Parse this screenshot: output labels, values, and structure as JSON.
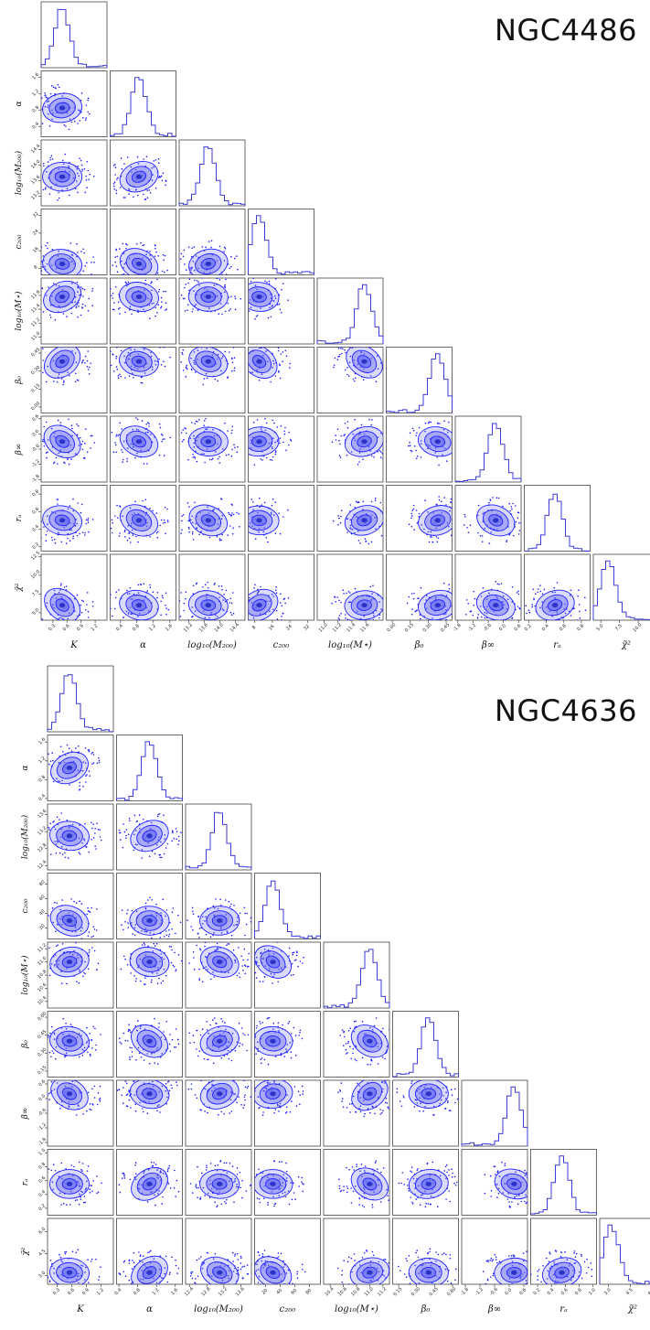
{
  "chart_data": [
    {
      "type": "corner",
      "title": "NGC4486",
      "colors": {
        "contour": "#1f1fff",
        "fill": "#6a6ff2",
        "hist": "#3b3bd9",
        "dot": "#1a1aff"
      },
      "params": [
        {
          "name": "K",
          "label": "K",
          "range": [
            0.05,
            1.45
          ],
          "ticks": [
            "0.3",
            "0.6",
            "0.9",
            "1.2"
          ],
          "center": 0.5
        },
        {
          "name": "alpha",
          "label": "α",
          "range": [
            0.15,
            1.75
          ],
          "ticks": [
            "0.4",
            "0.8",
            "1.2",
            "1.6"
          ],
          "center": 0.85
        },
        {
          "name": "log10M200",
          "label": "log₁₀(M₂₀₀)",
          "range": [
            12.95,
            14.65
          ],
          "ticks": [
            "13.2",
            "13.6",
            "14.0",
            "14.4"
          ],
          "center": 13.7
        },
        {
          "name": "c200",
          "label": "c₂₀₀",
          "range": [
            5,
            35
          ],
          "ticks": [
            "8",
            "16",
            "24",
            "32"
          ],
          "center": 10
        },
        {
          "name": "log10Mstar",
          "label": "log₁₀(M⋆)",
          "range": [
            10.9,
            11.85
          ],
          "ticks": [
            "11.0",
            "11.2",
            "11.4",
            "11.6"
          ],
          "center": 11.58
        },
        {
          "name": "beta0",
          "label": "β₀",
          "range": [
            -0.05,
            0.5
          ],
          "ticks": [
            "0.00",
            "0.15",
            "0.30",
            "0.45"
          ],
          "center": 0.38
        },
        {
          "name": "betainf",
          "label": "β∞",
          "range": [
            -1.9,
            0.7
          ],
          "ticks": [
            "-1.8",
            "-1.2",
            "-0.6",
            "0.0",
            "0.6"
          ],
          "center": -0.3
        },
        {
          "name": "ra",
          "label": "rₐ",
          "range": [
            0.15,
            0.9
          ],
          "ticks": [
            "0.2",
            "0.4",
            "0.6",
            "0.8"
          ],
          "center": 0.5
        },
        {
          "name": "chi2",
          "label": "χ̃²",
          "range": [
            4.0,
            12.8
          ],
          "ticks": [
            "5.0",
            "7.5",
            "10.0",
            "12.5"
          ],
          "center": 6.0
        }
      ]
    },
    {
      "type": "corner",
      "title": "NGC4636",
      "colors": {
        "contour": "#1f1fff",
        "fill": "#6a6ff2",
        "hist": "#3b3bd9",
        "dot": "#1a1aff"
      },
      "params": [
        {
          "name": "K",
          "label": "K",
          "range": [
            0.1,
            1.45
          ],
          "ticks": [
            "0.3",
            "0.6",
            "0.9",
            "1.2",
            "1.5"
          ],
          "center": 0.55
        },
        {
          "name": "alpha",
          "label": "α",
          "range": [
            0.35,
            1.75
          ],
          "ticks": [
            "0.4",
            "0.8",
            "1.2",
            "1.6"
          ],
          "center": 1.05
        },
        {
          "name": "log10M200",
          "label": "log₁₀(M₂₀₀)",
          "range": [
            12.3,
            13.85
          ],
          "ticks": [
            "12.4",
            "12.8",
            "13.2",
            "13.6"
          ],
          "center": 13.1
        },
        {
          "name": "c200",
          "label": "c₂₀₀",
          "range": [
            5,
            95
          ],
          "ticks": [
            "20",
            "40",
            "60",
            "80"
          ],
          "center": 30
        },
        {
          "name": "log10Mstar",
          "label": "log₁₀(M⋆)",
          "range": [
            10.3,
            11.3
          ],
          "ticks": [
            "10.4",
            "10.6",
            "10.8",
            "11.0",
            "11.2"
          ],
          "center": 11.0
        },
        {
          "name": "beta0",
          "label": "β₀",
          "range": [
            0.1,
            0.65
          ],
          "ticks": [
            "0.15",
            "0.30",
            "0.45",
            "0.60"
          ],
          "center": 0.4
        },
        {
          "name": "betainf",
          "label": "β∞",
          "range": [
            -1.95,
            0.75
          ],
          "ticks": [
            "-1.8",
            "-1.2",
            "-0.6",
            "0.0",
            "0.6"
          ],
          "center": 0.2
        },
        {
          "name": "ra",
          "label": "rₐ",
          "range": [
            0.1,
            1.05
          ],
          "ticks": [
            "0.2",
            "0.4",
            "0.6",
            "0.8",
            "1.0"
          ],
          "center": 0.55
        },
        {
          "name": "chi2",
          "label": "χ̃²",
          "range": [
            2.4,
            6.9
          ],
          "ticks": [
            "3.0",
            "4.5",
            "6.0"
          ],
          "center": 3.2
        }
      ]
    }
  ]
}
